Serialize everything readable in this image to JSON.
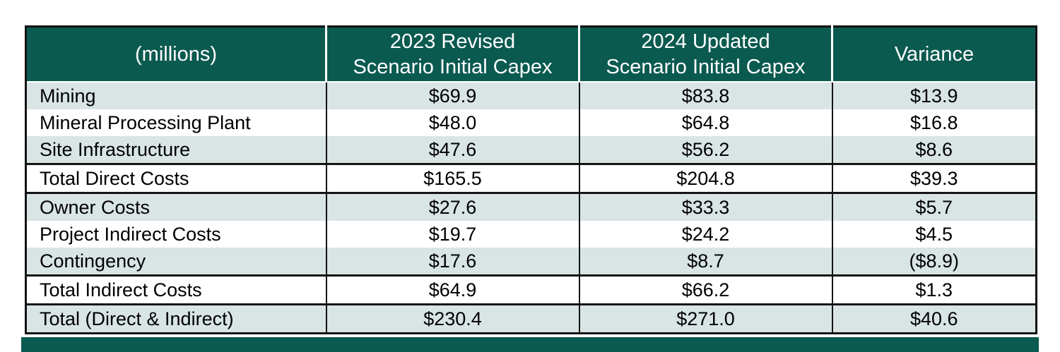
{
  "colors": {
    "header_bg": "#0b5a50",
    "header_text": "#ffffff",
    "alt_row_bg": "#d9e4e4",
    "row_bg": "#ffffff",
    "body_text": "#000000",
    "border": "#141414",
    "accent_bar": "#0b5a50"
  },
  "table": {
    "columns": [
      {
        "label": "(millions)"
      },
      {
        "label": "2023 Revised Scenario Initial Capex",
        "line1": "2023 Revised",
        "line2": "Scenario Initial Capex"
      },
      {
        "label": "2024 Updated Scenario Initial Capex",
        "line1": "2024 Updated",
        "line2": "Scenario Initial Capex"
      },
      {
        "label": "Variance"
      }
    ],
    "rows": [
      {
        "label": "Mining",
        "capex_2023": "$69.9",
        "capex_2024": "$83.8",
        "variance": "$13.9"
      },
      {
        "label": "Mineral Processing Plant",
        "capex_2023": "$48.0",
        "capex_2024": "$64.8",
        "variance": "$16.8"
      },
      {
        "label": "Site Infrastructure",
        "capex_2023": "$47.6",
        "capex_2024": "$56.2",
        "variance": "$8.6"
      },
      {
        "label": "Total Direct Costs",
        "capex_2023": "$165.5",
        "capex_2024": "$204.8",
        "variance": "$39.3"
      },
      {
        "label": "Owner Costs",
        "capex_2023": "$27.6",
        "capex_2024": "$33.3",
        "variance": "$5.7"
      },
      {
        "label": "Project Indirect Costs",
        "capex_2023": "$19.7",
        "capex_2024": "$24.2",
        "variance": "$4.5"
      },
      {
        "label": "Contingency",
        "capex_2023": "$17.6",
        "capex_2024": "$8.7",
        "variance": "($8.9)"
      },
      {
        "label": "Total Indirect Costs",
        "capex_2023": "$64.9",
        "capex_2024": "$66.2",
        "variance": "$1.3"
      },
      {
        "label": "Total (Direct & Indirect)",
        "capex_2023": "$230.4",
        "capex_2024": "$271.0",
        "variance": "$40.6"
      }
    ]
  },
  "chart_data": {
    "type": "table",
    "title": "",
    "unit_label": "(millions)",
    "columns": [
      "(millions)",
      "2023 Revised Scenario Initial Capex",
      "2024 Updated Scenario Initial Capex",
      "Variance"
    ],
    "rows": [
      [
        "Mining",
        69.9,
        83.8,
        13.9
      ],
      [
        "Mineral Processing Plant",
        48.0,
        64.8,
        16.8
      ],
      [
        "Site Infrastructure",
        47.6,
        56.2,
        8.6
      ],
      [
        "Total Direct Costs",
        165.5,
        204.8,
        39.3
      ],
      [
        "Owner Costs",
        27.6,
        33.3,
        5.7
      ],
      [
        "Project Indirect Costs",
        19.7,
        24.2,
        4.5
      ],
      [
        "Contingency",
        17.6,
        8.7,
        -8.9
      ],
      [
        "Total Indirect Costs",
        64.9,
        66.2,
        1.3
      ],
      [
        "Total (Direct & Indirect)",
        230.4,
        271.0,
        40.6
      ]
    ],
    "layout_hints": {
      "striped_rows": true,
      "thick_separators_above_rows": [
        "Total Direct Costs",
        "Owner Costs",
        "Total Indirect Costs",
        "Total (Direct & Indirect)"
      ],
      "value_columns_centered": true
    }
  }
}
